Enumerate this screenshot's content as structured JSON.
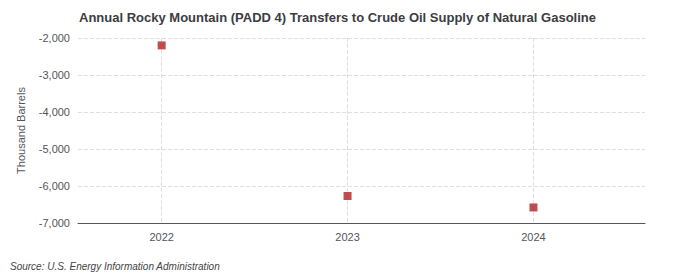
{
  "chart_data": {
    "type": "scatter",
    "title": "Annual Rocky Mountain (PADD 4) Transfers to Crude Oil Supply of Natural Gasoline",
    "ylabel": "Thousand Barrels",
    "annotations": [
      "Source: U.S. Energy Information Administration"
    ],
    "x": [
      2022,
      2023,
      2024
    ],
    "values": [
      -2200,
      -6270,
      -6580
    ],
    "color": "#b22222",
    "marker": "square",
    "xlim": [
      2021.55,
      2024.6
    ],
    "xticks": [
      2022,
      2023,
      2024
    ],
    "ylim": [
      -7000,
      -2000
    ],
    "yticks": [
      {
        "value": -7000,
        "label": "-7,000"
      },
      {
        "value": -6000,
        "label": "-6,000"
      },
      {
        "value": -5000,
        "label": "-5,000"
      },
      {
        "value": -4000,
        "label": "-4,000"
      },
      {
        "value": -3000,
        "label": "-3,000"
      },
      {
        "value": -2000,
        "label": "-2,000"
      }
    ],
    "grid": true
  }
}
